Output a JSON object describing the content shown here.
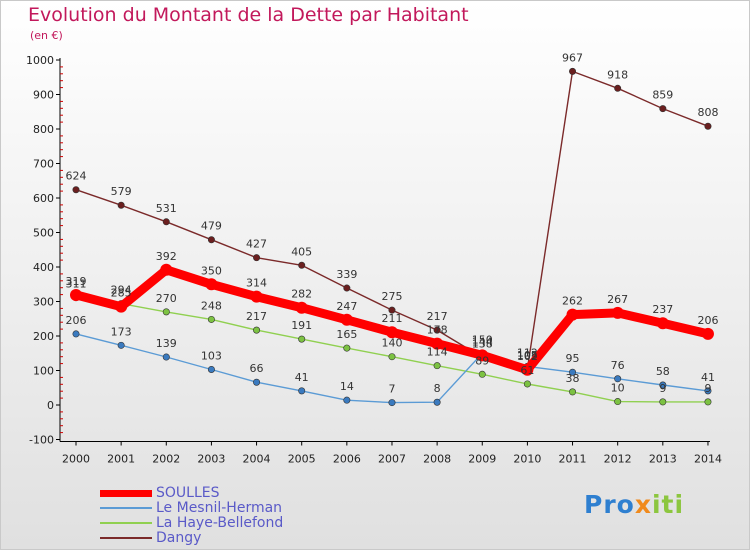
{
  "title": "Evolution du Montant de la Dette par Habitant",
  "subtitle": "(en €)",
  "logo_text": "Proxiti",
  "colors": {
    "title": "#c2185b",
    "legend_text": "#5a5ac8",
    "axis": "#000000",
    "grid_tick": "#cc0000"
  },
  "chart_data": {
    "type": "line",
    "title": "Evolution du Montant de la Dette par Habitant",
    "ylabel": "(en €)",
    "xlabel": "",
    "x": [
      "2000",
      "2001",
      "2002",
      "2003",
      "2004",
      "2005",
      "2006",
      "2007",
      "2008",
      "2009",
      "2010",
      "2011",
      "2012",
      "2013",
      "2014"
    ],
    "ylim": [
      -100,
      1000
    ],
    "yticks": [
      "-100",
      "0",
      "100",
      "200",
      "300",
      "400",
      "500",
      "600",
      "700",
      "800",
      "900",
      "1000"
    ],
    "grid": false,
    "legend_position": "bottom-left",
    "series": [
      {
        "name": "SOULLES",
        "color": "#ff0000",
        "marker": "#ff0000",
        "width": "thick",
        "values": [
          319,
          285,
          392,
          350,
          314,
          282,
          247,
          211,
          178,
          144,
          102,
          262,
          267,
          237,
          206
        ],
        "labels": [
          "319",
          "285",
          "392",
          "350",
          "314",
          "282",
          "247",
          "211",
          "178",
          "144",
          "102",
          "262",
          "267",
          "237",
          "206"
        ]
      },
      {
        "name": "Le Mesnil-Herman",
        "color": "#5b9bd5",
        "marker": "#3a7abf",
        "width": "thin",
        "values": [
          206,
          173,
          139,
          103,
          66,
          41,
          14,
          7,
          8,
          150,
          112,
          95,
          76,
          58,
          41
        ],
        "labels": [
          "206",
          "173",
          "139",
          "103",
          "66",
          "41",
          "14",
          "7",
          "8",
          "150",
          "112",
          "95",
          "76",
          "58",
          "41"
        ]
      },
      {
        "name": "La Haye-Bellefond",
        "color": "#90d050",
        "marker": "#7cc242",
        "width": "thin",
        "values": [
          311,
          294,
          270,
          248,
          217,
          191,
          165,
          140,
          114,
          89,
          61,
          38,
          10,
          9,
          9
        ],
        "labels": [
          "311",
          "294",
          "270",
          "248",
          "217",
          "191",
          "165",
          "140",
          "114",
          "89",
          "61",
          "38",
          "10",
          "9",
          "9"
        ]
      },
      {
        "name": "Dangy",
        "color": "#7b2a2a",
        "marker": "#6b1f1f",
        "width": "thin",
        "values": [
          624,
          579,
          531,
          479,
          427,
          405,
          339,
          275,
          217,
          138,
          105,
          967,
          918,
          859,
          808
        ],
        "labels": [
          "624",
          "579",
          "531",
          "479",
          "427",
          "405",
          "339",
          "275",
          "217",
          "138",
          "105",
          "967",
          "918",
          "859",
          "808"
        ]
      }
    ]
  }
}
